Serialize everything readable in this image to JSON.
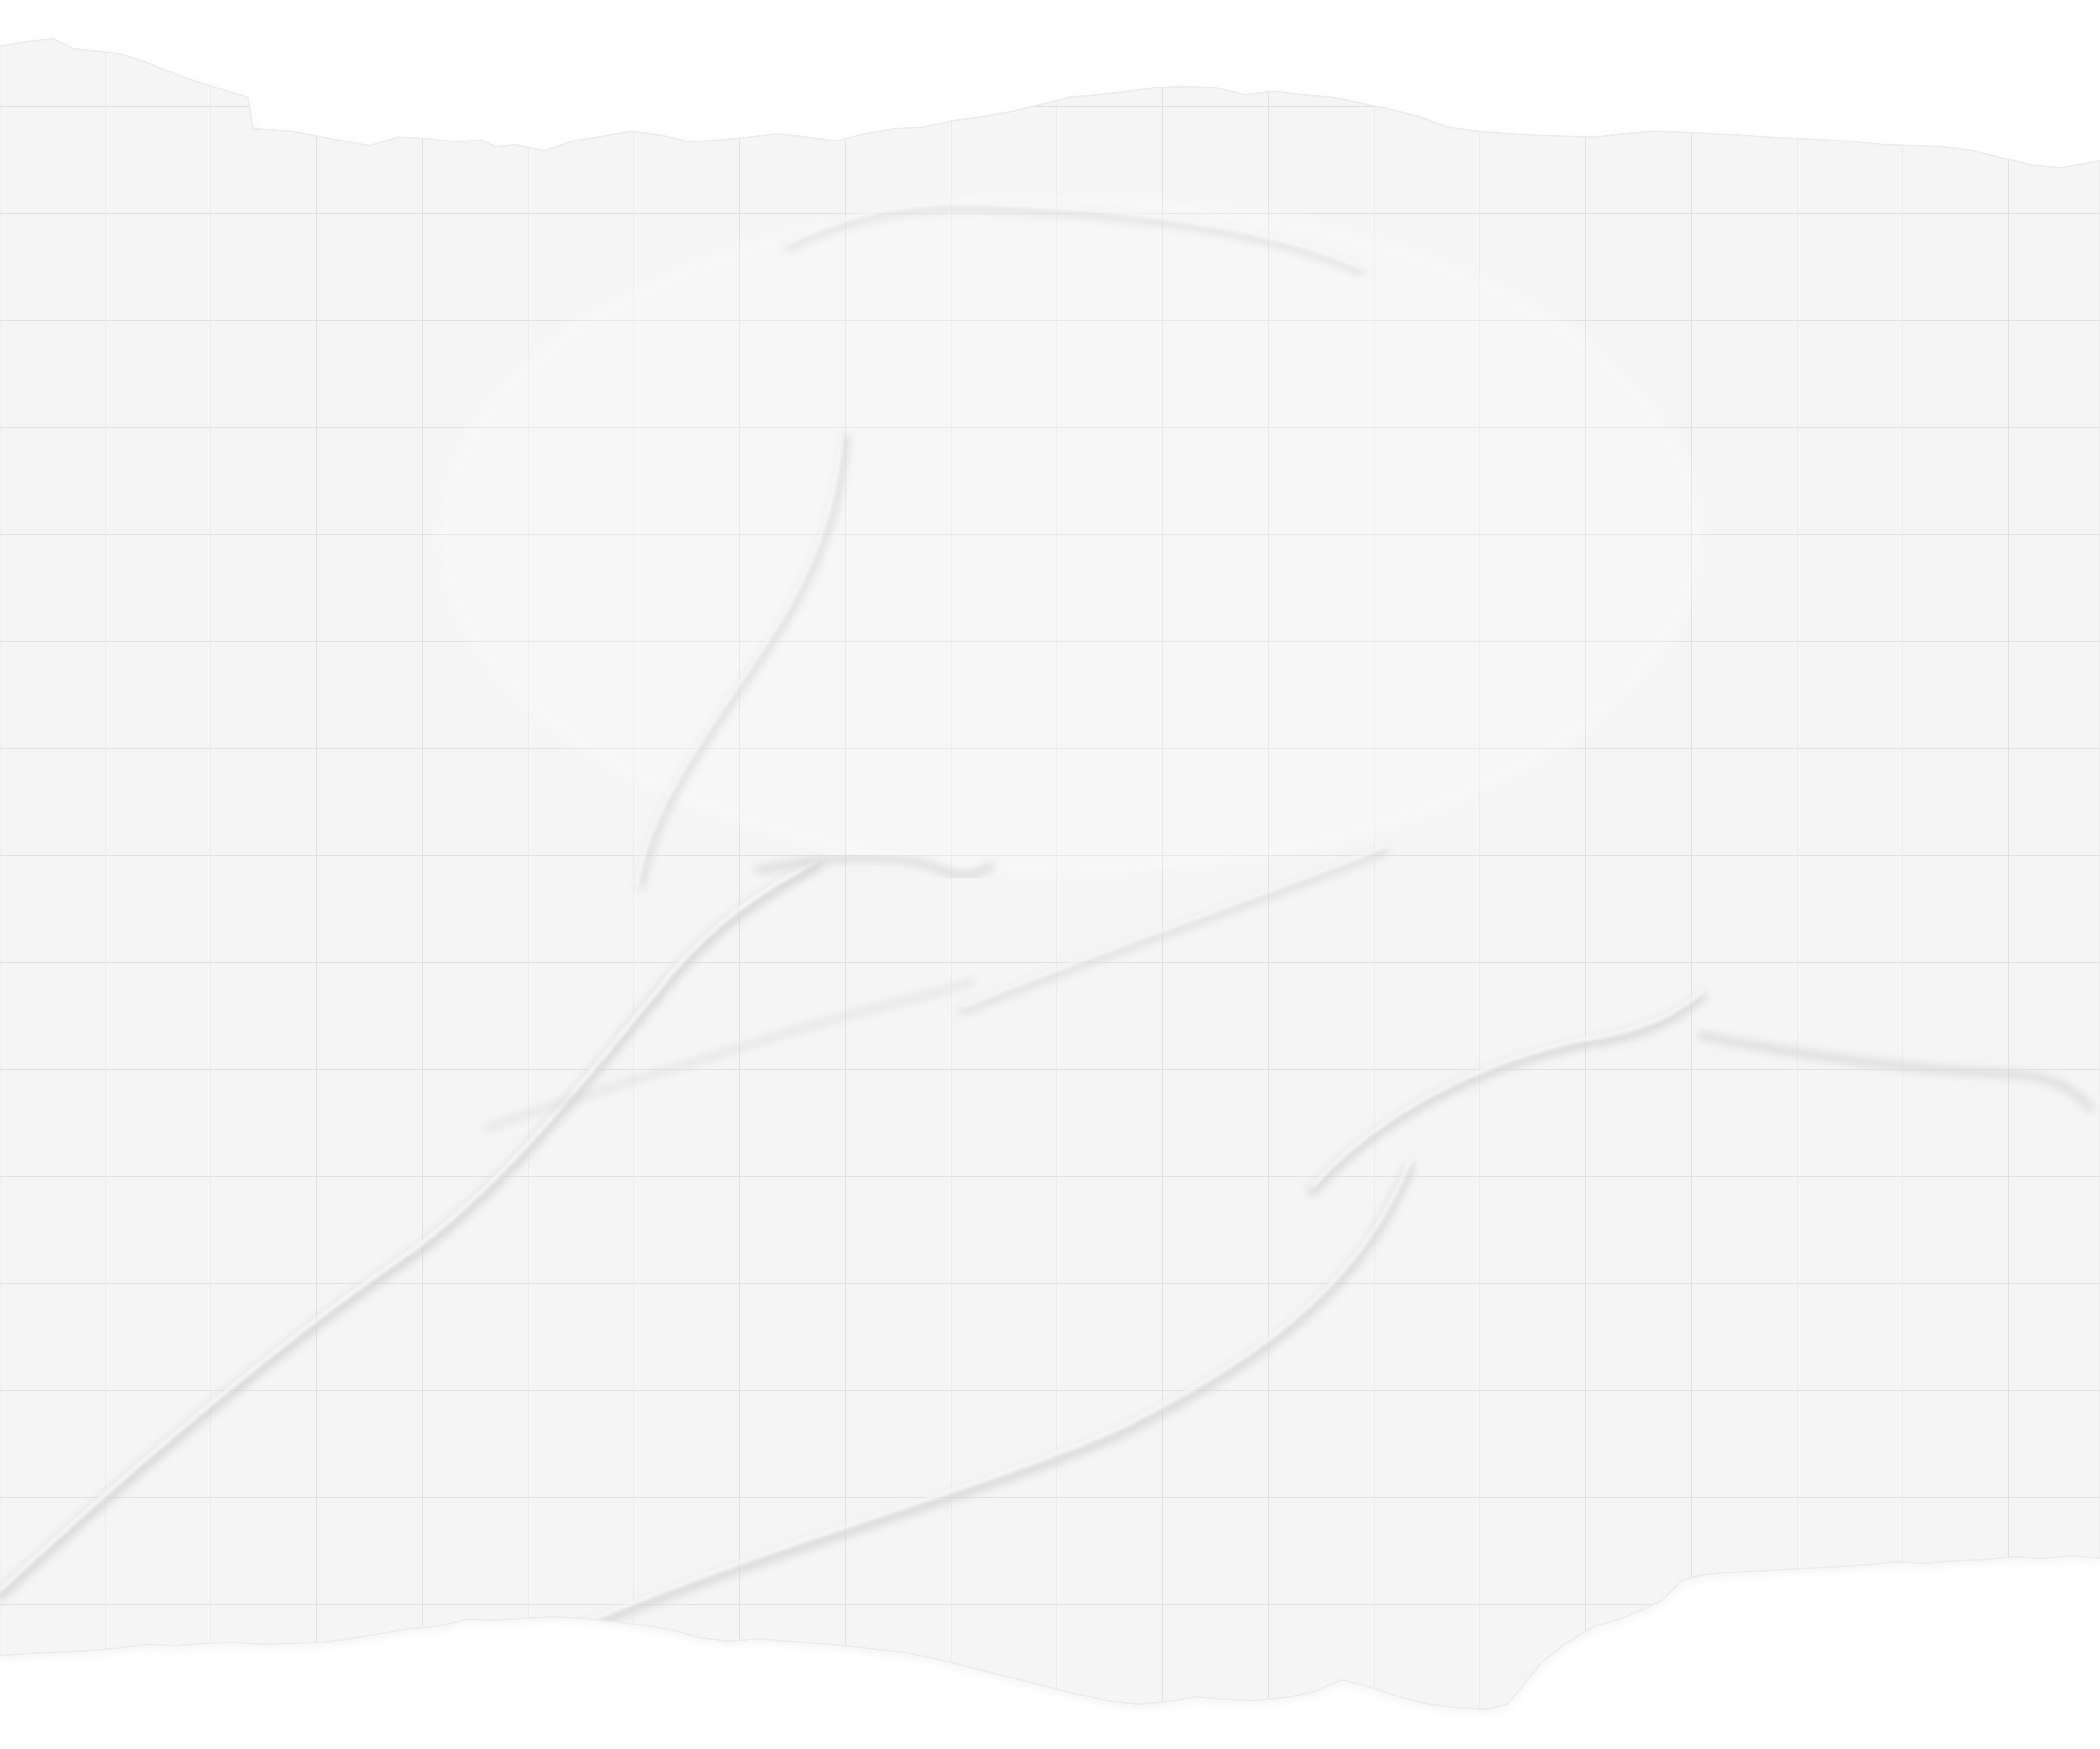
{
  "colors": {
    "background": "#ffffff",
    "paper": "#f5f5f5",
    "grid_line": "#e4e4e4",
    "crease_shadow": "#d6d6d6",
    "crease_highlight": "#ffffff"
  },
  "paper": {
    "kind": "torn graph paper sheet",
    "pattern": "square grid"
  }
}
